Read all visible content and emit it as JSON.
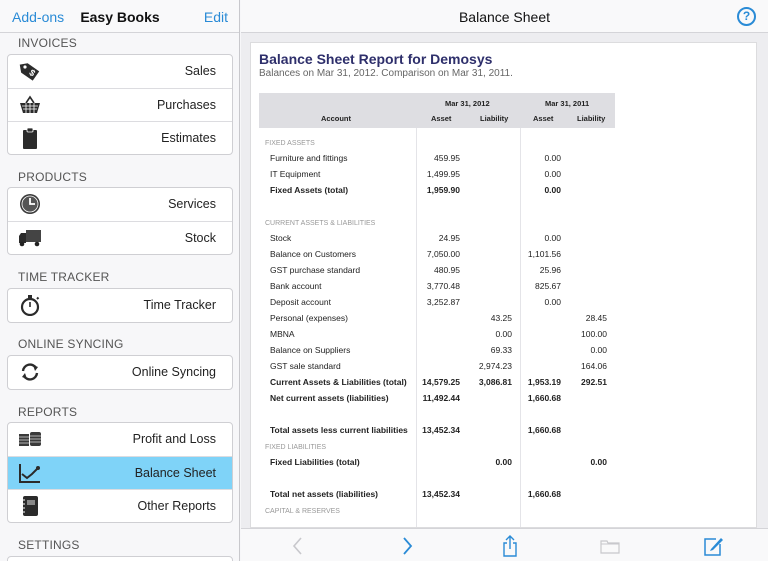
{
  "sidebar": {
    "nav": {
      "left_button": "Add-ons",
      "title": "Easy Books",
      "right_button": "Edit"
    },
    "sections": [
      {
        "label": "INVOICES",
        "items": [
          {
            "label": "Sales",
            "icon": "price-tag-icon"
          },
          {
            "label": "Purchases",
            "icon": "basket-icon"
          },
          {
            "label": "Estimates",
            "icon": "clipboard-icon"
          }
        ]
      },
      {
        "label": "PRODUCTS",
        "items": [
          {
            "label": "Services",
            "icon": "clock-icon"
          },
          {
            "label": "Stock",
            "icon": "truck-icon"
          }
        ]
      },
      {
        "label": "TIME TRACKER",
        "items": [
          {
            "label": "Time Tracker",
            "icon": "stopwatch-icon"
          }
        ]
      },
      {
        "label": "ONLINE SYNCING",
        "items": [
          {
            "label": "Online Syncing",
            "icon": "sync-icon"
          }
        ]
      },
      {
        "label": "REPORTS",
        "items": [
          {
            "label": "Profit and Loss",
            "icon": "money-stack-icon"
          },
          {
            "label": "Balance Sheet",
            "icon": "line-chart-icon",
            "selected": true
          },
          {
            "label": "Other Reports",
            "icon": "notebook-icon"
          }
        ]
      },
      {
        "label": "SETTINGS",
        "items": []
      }
    ],
    "selected_color": "#7fd3f8"
  },
  "main": {
    "nav": {
      "title": "Balance Sheet",
      "help_label": "?"
    },
    "report": {
      "title": "Balance Sheet Report for Demosys",
      "subtitle": "Balances on Mar 31, 2012. Comparison on Mar 31, 2011.",
      "header": {
        "account": "Account",
        "period1": "Mar 31, 2012",
        "period2": "Mar 31, 2011",
        "asset": "Asset",
        "liability": "Liability"
      },
      "rows": [
        {
          "type": "section",
          "account": "FIXED ASSETS"
        },
        {
          "account": "Furniture and fittings",
          "a1": "459.95",
          "l1": "",
          "a2": "0.00",
          "l2": ""
        },
        {
          "account": "IT Equipment",
          "a1": "1,499.95",
          "l1": "",
          "a2": "0.00",
          "l2": ""
        },
        {
          "type": "bold",
          "account": "Fixed Assets (total)",
          "a1": "1,959.90",
          "l1": "",
          "a2": "0.00",
          "l2": ""
        },
        {
          "type": "spacer"
        },
        {
          "type": "section",
          "account": "CURRENT ASSETS & LIABILITIES"
        },
        {
          "account": "Stock",
          "a1": "24.95",
          "l1": "",
          "a2": "0.00",
          "l2": ""
        },
        {
          "account": "Balance on Customers",
          "a1": "7,050.00",
          "l1": "",
          "a2": "1,101.56",
          "l2": ""
        },
        {
          "account": "GST purchase standard",
          "a1": "480.95",
          "l1": "",
          "a2": "25.96",
          "l2": ""
        },
        {
          "account": "Bank account",
          "a1": "3,770.48",
          "l1": "",
          "a2": "825.67",
          "l2": ""
        },
        {
          "account": "Deposit account",
          "a1": "3,252.87",
          "l1": "",
          "a2": "0.00",
          "l2": ""
        },
        {
          "account": "Personal (expenses)",
          "a1": "",
          "l1": "43.25",
          "a2": "",
          "l2": "28.45"
        },
        {
          "account": "MBNA",
          "a1": "",
          "l1": "0.00",
          "a2": "",
          "l2": "100.00"
        },
        {
          "account": "Balance on Suppliers",
          "a1": "",
          "l1": "69.33",
          "a2": "",
          "l2": "0.00"
        },
        {
          "account": "GST sale standard",
          "a1": "",
          "l1": "2,974.23",
          "a2": "",
          "l2": "164.06"
        },
        {
          "type": "bold",
          "account": "Current Assets & Liabilities (total)",
          "a1": "14,579.25",
          "l1": "3,086.81",
          "a2": "1,953.19",
          "l2": "292.51"
        },
        {
          "type": "bold",
          "account": "Net current assets (liabilities)",
          "a1": "11,492.44",
          "l1": "",
          "a2": "1,660.68",
          "l2": ""
        },
        {
          "type": "spacer"
        },
        {
          "type": "bold",
          "account": "Total assets less current liabilities",
          "a1": "13,452.34",
          "l1": "",
          "a2": "1,660.68",
          "l2": ""
        },
        {
          "type": "section",
          "account": "FIXED LIABILITIES"
        },
        {
          "type": "bold",
          "account": "Fixed Liabilities (total)",
          "a1": "",
          "l1": "0.00",
          "a2": "",
          "l2": "0.00"
        },
        {
          "type": "spacer"
        },
        {
          "type": "bold",
          "account": "Total net assets (liabilities)",
          "a1": "13,452.34",
          "l1": "",
          "a2": "1,660.68",
          "l2": ""
        },
        {
          "type": "section",
          "account": "CAPITAL & RESERVES"
        }
      ]
    },
    "toolbar": {
      "buttons": [
        {
          "name": "back-button",
          "icon": "chevron-left-icon",
          "enabled": false
        },
        {
          "name": "forward-button",
          "icon": "chevron-right-icon",
          "enabled": true
        },
        {
          "name": "share-button",
          "icon": "share-icon",
          "enabled": true
        },
        {
          "name": "folder-button",
          "icon": "folder-icon",
          "enabled": false
        },
        {
          "name": "compose-button",
          "icon": "compose-icon",
          "enabled": true
        }
      ]
    },
    "accent_color": "#2a8bd6",
    "title_color": "#2e2f6b"
  }
}
